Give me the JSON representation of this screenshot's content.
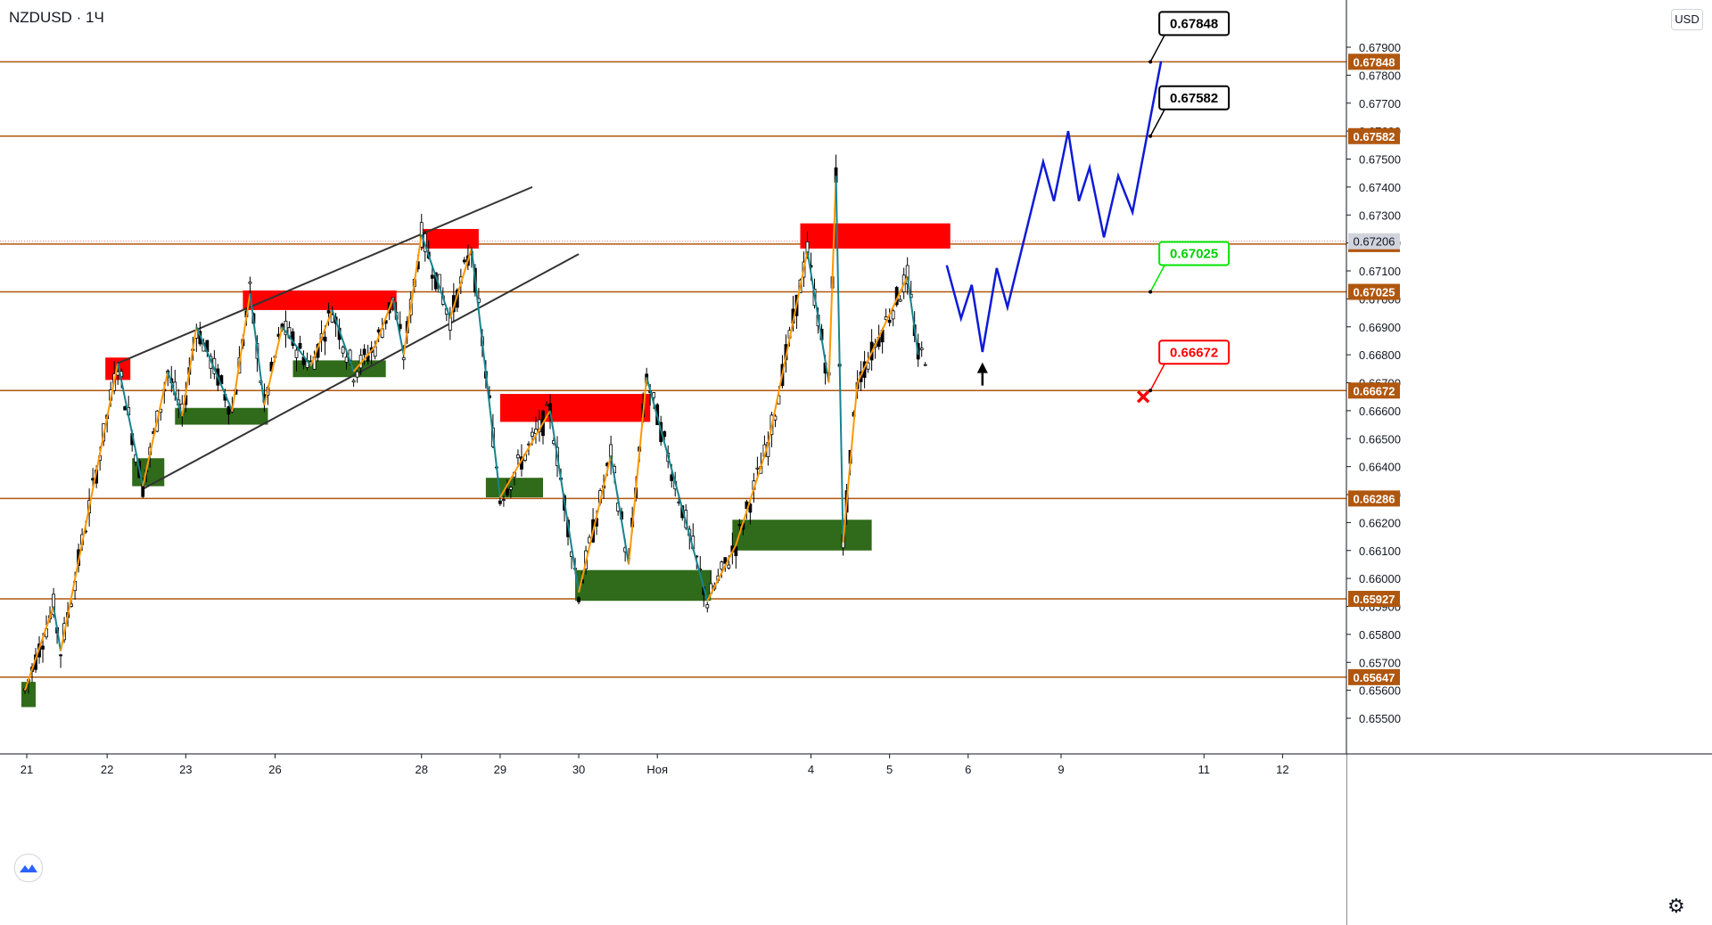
{
  "header": {
    "symbol": "NZDUSD",
    "interval": "1Ч",
    "separator": "·"
  },
  "currency_button": "USD",
  "chart_data": {
    "type": "candlestick",
    "title": "NZDUSD · 1Ч",
    "ylim": [
      0.6546,
      0.6796
    ],
    "y_ticks": [
      "0.65500",
      "0.65600",
      "0.65700",
      "0.65800",
      "0.65900",
      "0.66000",
      "0.66100",
      "0.66200",
      "0.66300",
      "0.66400",
      "0.66500",
      "0.66600",
      "0.66700",
      "0.66800",
      "0.66900",
      "0.67000",
      "0.67100",
      "0.67200",
      "0.67300",
      "0.67400",
      "0.67500",
      "0.67600",
      "0.67700",
      "0.67800",
      "0.67900"
    ],
    "y_tick_values": [
      0.655,
      0.656,
      0.657,
      0.658,
      0.659,
      0.66,
      0.661,
      0.662,
      0.663,
      0.664,
      0.665,
      0.666,
      0.667,
      0.668,
      0.669,
      0.67,
      0.671,
      0.672,
      0.673,
      0.674,
      0.675,
      0.676,
      0.677,
      0.678,
      0.679
    ],
    "x_ticks": [
      {
        "label": "21",
        "t": 0.5
      },
      {
        "label": "22",
        "t": 23
      },
      {
        "label": "23",
        "t": 45
      },
      {
        "label": "26",
        "t": 70
      },
      {
        "label": "28",
        "t": 111
      },
      {
        "label": "29",
        "t": 133
      },
      {
        "label": "30",
        "t": 155
      },
      {
        "label": "Ноя",
        "t": 177
      },
      {
        "label": "4",
        "t": 220
      },
      {
        "label": "5",
        "t": 242
      },
      {
        "label": "6",
        "t": 264
      },
      {
        "label": "9",
        "t": 290
      },
      {
        "label": "11",
        "t": 330
      },
      {
        "label": "12",
        "t": 352
      }
    ],
    "levels": [
      {
        "label": "0.67848",
        "value": 0.67848
      },
      {
        "label": "0.67582",
        "value": 0.67582
      },
      {
        "label": "0.67196",
        "value": 0.67196
      },
      {
        "label": "0.67025",
        "value": 0.67025
      },
      {
        "label": "0.66672",
        "value": 0.66672
      },
      {
        "label": "0.66286",
        "value": 0.66286
      },
      {
        "label": "0.65927",
        "value": 0.65927
      },
      {
        "label": "0.65647",
        "value": 0.65647
      }
    ],
    "current_price": {
      "label": "0.67206",
      "value": 0.67206
    },
    "callouts": [
      {
        "label": "0.67848",
        "value": 0.67848,
        "t": 315,
        "border": "#000000",
        "text_color": "#000000"
      },
      {
        "label": "0.67582",
        "value": 0.67582,
        "t": 315,
        "border": "#000000",
        "text_color": "#000000"
      },
      {
        "label": "0.67025",
        "value": 0.67025,
        "t": 315,
        "border": "#00e600",
        "text_color": "#00d000"
      },
      {
        "label": "0.66672",
        "value": 0.66672,
        "t": 315,
        "border": "#ff0000",
        "text_color": "#ff0000"
      }
    ],
    "supply_zones": [
      {
        "t0": 22.5,
        "t1": 29.5,
        "y0": 0.6671,
        "y1": 0.6679
      },
      {
        "t0": 61,
        "t1": 104,
        "y0": 0.6696,
        "y1": 0.6703
      },
      {
        "t0": 111,
        "t1": 127,
        "y0": 0.6718,
        "y1": 0.6725
      },
      {
        "t0": 133,
        "t1": 175,
        "y0": 0.6656,
        "y1": 0.6666
      },
      {
        "t0": 217,
        "t1": 259,
        "y0": 0.6718,
        "y1": 0.6727
      }
    ],
    "demand_zones": [
      {
        "t0": -1,
        "t1": 3,
        "y0": 0.6554,
        "y1": 0.6563
      },
      {
        "t0": 30,
        "t1": 39,
        "y0": 0.6633,
        "y1": 0.6643
      },
      {
        "t0": 42,
        "t1": 68,
        "y0": 0.6655,
        "y1": 0.6661
      },
      {
        "t0": 75,
        "t1": 101,
        "y0": 0.6672,
        "y1": 0.6678
      },
      {
        "t0": 129,
        "t1": 145,
        "y0": 0.6629,
        "y1": 0.6636
      },
      {
        "t0": 154,
        "t1": 192,
        "y0": 0.6592,
        "y1": 0.6603
      },
      {
        "t0": 198,
        "t1": 237,
        "y0": 0.661,
        "y1": 0.6621
      }
    ],
    "channel_lines": [
      {
        "t0": 26,
        "v0": 0.6677,
        "t1": 142,
        "v1": 0.674
      },
      {
        "t0": 33,
        "v0": 0.6632,
        "t1": 155,
        "v1": 0.6716
      }
    ],
    "zigzag": [
      [
        0,
        0.656
      ],
      [
        8,
        0.659
      ],
      [
        10,
        0.6574
      ],
      [
        26,
        0.6677
      ],
      [
        33,
        0.6633
      ],
      [
        40,
        0.6674
      ],
      [
        44,
        0.6658
      ],
      [
        48,
        0.669
      ],
      [
        58,
        0.666
      ],
      [
        63,
        0.6702
      ],
      [
        67,
        0.6662
      ],
      [
        72,
        0.669
      ],
      [
        80,
        0.6676
      ],
      [
        86,
        0.6696
      ],
      [
        92,
        0.6674
      ],
      [
        98,
        0.6683
      ],
      [
        103,
        0.67
      ],
      [
        106,
        0.668
      ],
      [
        111,
        0.6723
      ],
      [
        119,
        0.6693
      ],
      [
        125,
        0.6718
      ],
      [
        133,
        0.6629
      ],
      [
        147,
        0.666
      ],
      [
        155,
        0.6595
      ],
      [
        164,
        0.6644
      ],
      [
        169,
        0.6605
      ],
      [
        174,
        0.6672
      ],
      [
        191,
        0.6592
      ],
      [
        199,
        0.6612
      ],
      [
        208,
        0.6648
      ],
      [
        219,
        0.6717
      ],
      [
        225,
        0.667
      ],
      [
        227,
        0.6744
      ],
      [
        229,
        0.6613
      ],
      [
        233,
        0.667
      ],
      [
        247,
        0.6708
      ],
      [
        250,
        0.668
      ]
    ],
    "projection": [
      [
        258,
        0.6712
      ],
      [
        262,
        0.6693
      ],
      [
        265,
        0.6705
      ],
      [
        268,
        0.6681
      ],
      [
        272,
        0.6711
      ],
      [
        275,
        0.6697
      ],
      [
        285,
        0.6749
      ],
      [
        288,
        0.6735
      ],
      [
        292,
        0.676
      ],
      [
        295,
        0.6735
      ],
      [
        298,
        0.6747
      ],
      [
        302,
        0.6722
      ],
      [
        306,
        0.6744
      ],
      [
        310,
        0.6731
      ],
      [
        318,
        0.6785
      ]
    ],
    "arrow": {
      "t": 268,
      "v0": 0.6669,
      "v1": 0.6676
    },
    "cross": {
      "t": 313,
      "v": 0.6665
    },
    "colors": {
      "level": "#b0570f",
      "supply": "#ff0000",
      "demand": "#2f6b1a",
      "up": "#26a69a",
      "zigzag_a": "#ff9800",
      "zigzag_b": "#17848e",
      "projection": "#0d1ad8",
      "channel": "#333333",
      "candle": "#000000"
    }
  }
}
